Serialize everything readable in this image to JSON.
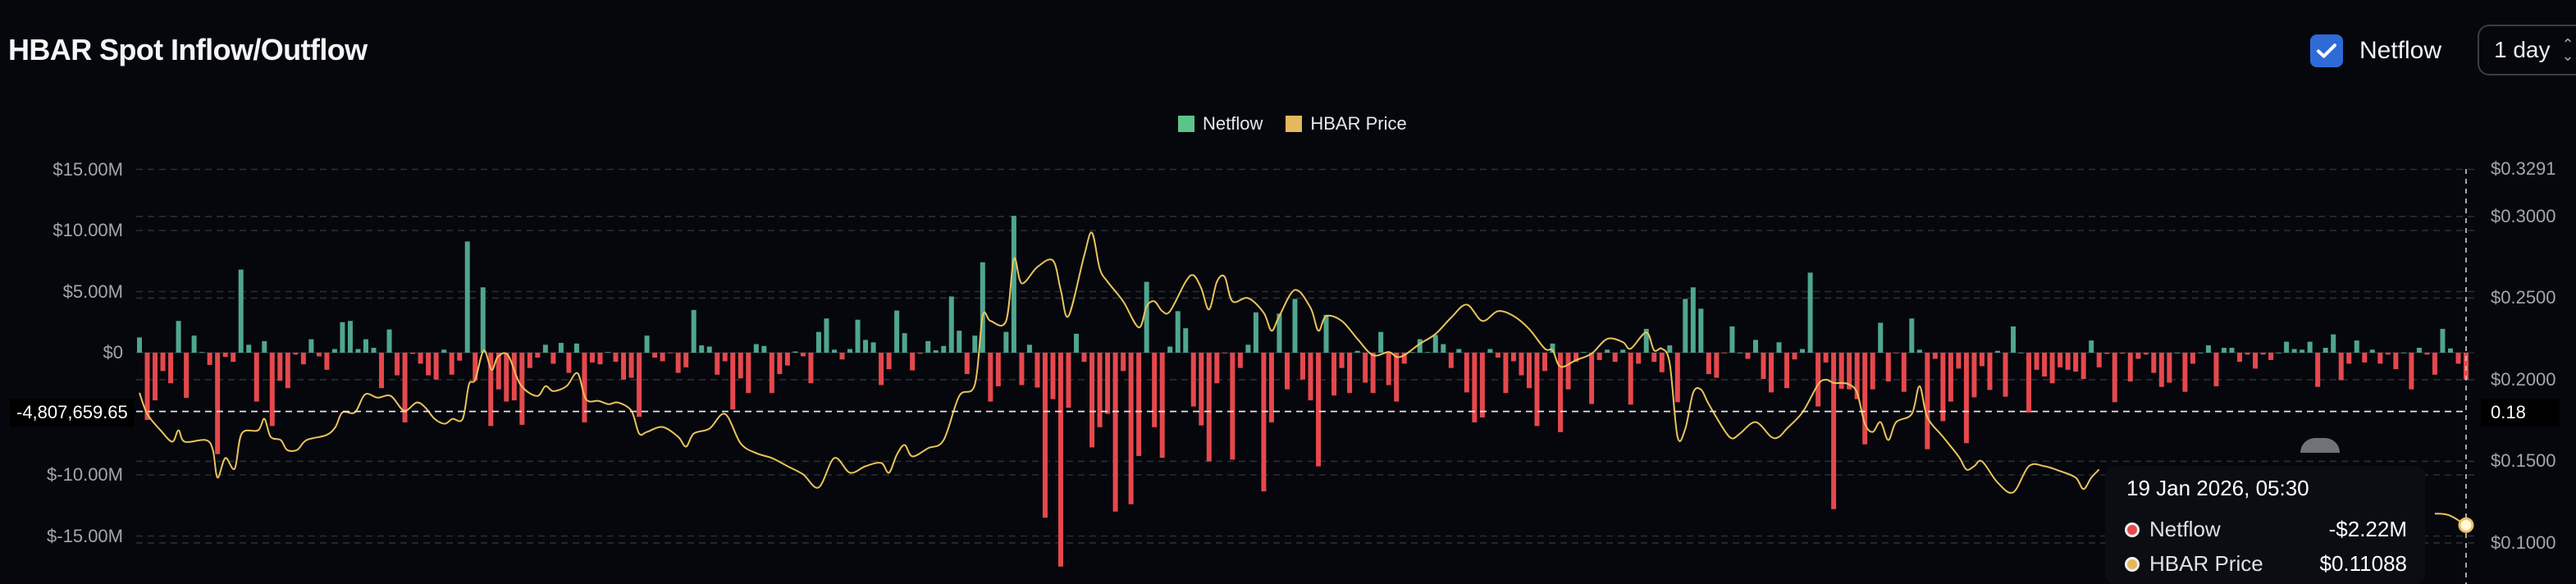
{
  "header": {
    "title": "HBAR Spot Inflow/Outflow",
    "netflow_toggle": {
      "label": "Netflow",
      "checked": true
    },
    "interval": {
      "value": "1 day"
    }
  },
  "legend": [
    {
      "name": "Netflow",
      "color": "#5cc48a"
    },
    {
      "name": "HBAR Price",
      "color": "#e3b95c"
    }
  ],
  "crosshair": {
    "netflow_label": "-4,807,659.65",
    "price_label": "0.18"
  },
  "tooltip": {
    "date": "19 Jan 2026, 05:30",
    "rows": [
      {
        "label": "Netflow",
        "value": "-$2.22M",
        "color": "#e5484d"
      },
      {
        "label": "HBAR Price",
        "value": "$0.11088",
        "color": "#e3b95c"
      }
    ]
  },
  "colors": {
    "inflow": "#4fa68e",
    "outflow": "#e5484d",
    "price_line": "#e9c35c",
    "background": "#05070c"
  },
  "chart_data": {
    "type": "bar+line",
    "title": "HBAR Spot Inflow/Outflow",
    "grid": true,
    "legend_position": "top-center",
    "left_axis": {
      "unit": "USD millions",
      "range": [
        -17.6,
        15
      ],
      "ticks": [
        {
          "value": 15,
          "label": "$15.00M"
        },
        {
          "value": 10,
          "label": "$10.00M"
        },
        {
          "value": 5,
          "label": "$5.00M"
        },
        {
          "value": 0,
          "label": "$0"
        },
        {
          "value": -10,
          "label": "$-10.00M"
        },
        {
          "value": -15,
          "label": "$-15.00M"
        }
      ]
    },
    "right_axis": {
      "range": [
        0.1,
        0.3291
      ],
      "ticks": [
        {
          "value": 0.3291,
          "label": "$0.3291"
        },
        {
          "value": 0.3,
          "label": "$0.3000"
        },
        {
          "value": 0.25,
          "label": "$0.2500"
        },
        {
          "value": 0.2,
          "label": "$0.2000"
        },
        {
          "value": 0.15,
          "label": "$0.1500"
        },
        {
          "value": 0.1,
          "label": "$0.1000"
        }
      ]
    },
    "crosshair_values": {
      "netflow": -4807659.65,
      "price": 0.18
    },
    "series": [
      {
        "name": "Netflow",
        "type": "bar",
        "axis": "left",
        "values": [
          1.25,
          -5.5,
          -3.9,
          -1.5,
          -2.5,
          2.6,
          -3.7,
          1.4,
          0.05,
          -1.0,
          -8.3,
          -0.35,
          -0.75,
          6.8,
          0.65,
          -4.0,
          0.95,
          -6.0,
          -2.3,
          -2.9,
          -0.15,
          -0.95,
          1.1,
          -0.3,
          -1.4,
          0.3,
          2.5,
          2.6,
          0.3,
          1.1,
          0.4,
          -2.9,
          1.9,
          -1.85,
          -5.7,
          -0.1,
          -0.9,
          -1.85,
          -2.2,
          0.25,
          -1.8,
          -0.65,
          9.1,
          -2.3,
          5.35,
          -6.0,
          -3.0,
          -4.0,
          -3.9,
          -5.9,
          -1.25,
          -0.4,
          0.65,
          -0.9,
          0.8,
          -1.65,
          0.75,
          -5.7,
          -0.8,
          -0.95,
          0.05,
          -0.75,
          -2.2,
          -2.05,
          -5.25,
          1.4,
          -0.4,
          -0.7,
          -0.03,
          -1.65,
          -1.2,
          3.5,
          0.6,
          0.5,
          -1.8,
          -0.7,
          -4.65,
          -2.1,
          -3.3,
          0.7,
          0.55,
          -3.3,
          -1.75,
          -1.05,
          0.1,
          -0.3,
          -2.5,
          1.7,
          2.8,
          0.25,
          -0.55,
          0.3,
          2.7,
          1.05,
          0.85,
          -2.65,
          -1.35,
          3.45,
          1.6,
          -1.45,
          -0.08,
          0.95,
          0.2,
          0.55,
          4.6,
          1.8,
          -1.75,
          1.4,
          7.4,
          -4.0,
          -2.75,
          1.7,
          11.2,
          -2.65,
          0.65,
          -2.85,
          -13.5,
          -3.8,
          -17.5,
          -4.5,
          1.55,
          -0.75,
          -7.75,
          -6.1,
          -5.0,
          -13.0,
          -1.5,
          -12.4,
          -8.45,
          5.8,
          -6.1,
          -8.6,
          0.5,
          3.4,
          2.0,
          -4.4,
          -5.95,
          -8.9,
          -2.5,
          -0.02,
          -8.75,
          -1.25,
          0.65,
          3.3,
          -11.35,
          -5.7,
          3.2,
          -3.0,
          4.4,
          -2.2,
          -3.9,
          -9.3,
          3.1,
          -3.5,
          -1.25,
          -3.3,
          0.15,
          -2.45,
          -3.3,
          1.7,
          -2.65,
          -4.0,
          -0.9,
          0.05,
          1.1,
          0.05,
          1.45,
          0.7,
          -1.25,
          0.3,
          -3.25,
          -5.7,
          -5.3,
          0.3,
          -0.4,
          -3.3,
          -0.7,
          -1.85,
          -2.9,
          -6.0,
          -1.5,
          0.75,
          -6.5,
          -3.0,
          -0.75,
          0.05,
          -4.2,
          -0.6,
          0.25,
          -0.75,
          0.25,
          -4.25,
          -0.9,
          1.95,
          -0.75,
          -1.6,
          0.6,
          -4.05,
          4.4,
          5.35,
          3.6,
          -1.75,
          -2.05,
          -0.05,
          2.15,
          0,
          -0.5,
          1.05,
          -2.15,
          -3.25,
          0.85,
          -2.9,
          -0.55,
          0.3,
          6.55,
          -4.4,
          -0.8,
          -12.8,
          -2.95,
          -3.0,
          -3.8,
          -7.5,
          -3.0,
          2.45,
          -2.35,
          -0.05,
          -3.2,
          2.8,
          0.25,
          -7.9,
          -0.5,
          -5.6,
          -4.0,
          -1.3,
          -7.4,
          -3.65,
          -1.1,
          -3.05,
          0.15,
          -3.6,
          2.15,
          0,
          -4.9,
          -1.4,
          -1.95,
          -2.5,
          -1.2,
          -1.4,
          -1.55,
          -2.15,
          1.0,
          -1.2,
          -0.1,
          -4.05,
          -0.08,
          -2.35,
          -0.5,
          -0.15,
          -1.65,
          -2.8,
          -2.45,
          0,
          -3.2,
          -0.9,
          0,
          0.6,
          -2.75,
          0.4,
          0.4,
          -0.75,
          -0.15,
          -1.3,
          -0.15,
          -0.6,
          0,
          0.9,
          0.3,
          0.25,
          0.9,
          -2.8,
          0.4,
          1.5,
          -2.25,
          -0.9,
          1.0,
          -0.8,
          0.25,
          -0.9,
          -0.15,
          -1.35,
          0,
          -3.0,
          0.4,
          -0.15,
          -1.8,
          1.95,
          0.35,
          -0.9,
          -2.22
        ]
      },
      {
        "name": "HBAR Price",
        "type": "line",
        "axis": "right",
        "points": [
          [
            0,
            0.192
          ],
          [
            1,
            0.179
          ],
          [
            2.7,
            0.169
          ],
          [
            4.2,
            0.162
          ],
          [
            5,
            0.169
          ],
          [
            5.8,
            0.162
          ],
          [
            8.5,
            0.163
          ],
          [
            9.4,
            0.157
          ],
          [
            10,
            0.14
          ],
          [
            11,
            0.152
          ],
          [
            12.2,
            0.1455
          ],
          [
            13.1,
            0.167
          ],
          [
            15.2,
            0.169
          ],
          [
            16,
            0.176
          ],
          [
            16.8,
            0.165
          ],
          [
            18.1,
            0.163
          ],
          [
            18.9,
            0.157
          ],
          [
            20.2,
            0.157
          ],
          [
            21.4,
            0.163
          ],
          [
            23.9,
            0.166
          ],
          [
            25.1,
            0.171
          ],
          [
            26,
            0.18
          ],
          [
            27.6,
            0.18
          ],
          [
            28.9,
            0.191
          ],
          [
            30.5,
            0.189
          ],
          [
            32.2,
            0.19
          ],
          [
            33.9,
            0.181
          ],
          [
            35.5,
            0.186
          ],
          [
            36.6,
            0.183
          ],
          [
            37.8,
            0.176
          ],
          [
            39.1,
            0.173
          ],
          [
            40.1,
            0.176
          ],
          [
            41.4,
            0.176
          ],
          [
            42.2,
            0.197
          ],
          [
            43,
            0.2
          ],
          [
            44.1,
            0.218
          ],
          [
            45.1,
            0.206
          ],
          [
            45.9,
            0.214
          ],
          [
            47.2,
            0.215
          ],
          [
            48.8,
            0.197
          ],
          [
            50.9,
            0.19
          ],
          [
            52,
            0.196
          ],
          [
            53,
            0.193
          ],
          [
            54.7,
            0.196
          ],
          [
            56.1,
            0.204
          ],
          [
            57.2,
            0.188
          ],
          [
            58.8,
            0.187
          ],
          [
            60.1,
            0.185
          ],
          [
            61.3,
            0.186
          ],
          [
            63,
            0.181
          ],
          [
            64,
            0.167
          ],
          [
            65,
            0.168
          ],
          [
            67,
            0.171
          ],
          [
            69,
            0.165
          ],
          [
            70,
            0.159
          ],
          [
            71,
            0.167
          ],
          [
            73,
            0.17
          ],
          [
            75,
            0.179
          ],
          [
            77,
            0.161
          ],
          [
            79,
            0.155
          ],
          [
            81,
            0.152
          ],
          [
            83,
            0.147
          ],
          [
            85,
            0.142
          ],
          [
            87,
            0.134
          ],
          [
            89,
            0.152
          ],
          [
            91,
            0.143
          ],
          [
            93,
            0.147
          ],
          [
            95,
            0.149
          ],
          [
            96,
            0.143
          ],
          [
            97,
            0.154
          ],
          [
            98,
            0.16
          ],
          [
            99,
            0.153
          ],
          [
            101,
            0.158
          ],
          [
            103,
            0.163
          ],
          [
            105,
            0.19
          ],
          [
            107,
            0.197
          ],
          [
            108,
            0.239
          ],
          [
            109,
            0.236
          ],
          [
            111,
            0.236
          ],
          [
            112,
            0.274
          ],
          [
            113,
            0.259
          ],
          [
            115,
            0.269
          ],
          [
            117,
            0.273
          ],
          [
            118,
            0.255
          ],
          [
            119,
            0.239
          ],
          [
            121,
            0.276
          ],
          [
            122,
            0.29
          ],
          [
            123,
            0.268
          ],
          [
            124,
            0.26
          ],
          [
            126,
            0.248
          ],
          [
            128,
            0.232
          ],
          [
            129,
            0.245
          ],
          [
            130,
            0.248
          ],
          [
            131,
            0.242
          ],
          [
            132,
            0.242
          ],
          [
            134,
            0.26
          ],
          [
            135,
            0.264
          ],
          [
            136,
            0.256
          ],
          [
            137,
            0.243
          ],
          [
            138,
            0.26
          ],
          [
            139,
            0.263
          ],
          [
            140,
            0.248
          ],
          [
            142,
            0.25
          ],
          [
            144,
            0.241
          ],
          [
            145,
            0.23
          ],
          [
            146,
            0.239
          ],
          [
            148,
            0.255
          ],
          [
            150,
            0.244
          ],
          [
            151,
            0.23
          ],
          [
            152,
            0.239
          ],
          [
            154,
            0.236
          ],
          [
            156,
            0.225
          ],
          [
            158,
            0.215
          ],
          [
            160,
            0.217
          ],
          [
            161,
            0.214
          ],
          [
            162,
            0.215
          ],
          [
            164,
            0.222
          ],
          [
            166,
            0.228
          ],
          [
            168,
            0.238
          ],
          [
            170,
            0.246
          ],
          [
            172,
            0.236
          ],
          [
            174,
            0.242
          ],
          [
            176,
            0.239
          ],
          [
            178,
            0.231
          ],
          [
            180,
            0.219
          ],
          [
            181,
            0.218
          ],
          [
            182,
            0.208
          ],
          [
            184,
            0.212
          ],
          [
            186,
            0.216
          ],
          [
            188,
            0.225
          ],
          [
            190,
            0.223
          ],
          [
            191,
            0.219
          ],
          [
            193,
            0.229
          ],
          [
            194,
            0.218
          ],
          [
            195,
            0.219
          ],
          [
            196,
            0.21
          ],
          [
            197,
            0.165
          ],
          [
            198,
            0.17
          ],
          [
            199,
            0.192
          ],
          [
            200,
            0.194
          ],
          [
            201,
            0.185
          ],
          [
            203,
            0.169
          ],
          [
            204,
            0.164
          ],
          [
            205,
            0.167
          ],
          [
            207,
            0.174
          ],
          [
            209,
            0.165
          ],
          [
            210,
            0.165
          ],
          [
            211,
            0.17
          ],
          [
            213,
            0.18
          ],
          [
            215,
            0.197
          ],
          [
            216,
            0.2
          ],
          [
            217,
            0.198
          ],
          [
            218,
            0.198
          ],
          [
            219,
            0.197
          ],
          [
            220,
            0.192
          ],
          [
            221,
            0.173
          ],
          [
            222,
            0.168
          ],
          [
            223,
            0.174
          ],
          [
            224,
            0.163
          ],
          [
            225,
            0.174
          ],
          [
            227,
            0.179
          ],
          [
            228,
            0.196
          ],
          [
            229,
            0.177
          ],
          [
            231,
            0.165
          ],
          [
            233,
            0.153
          ],
          [
            234,
            0.145
          ],
          [
            235,
            0.147
          ],
          [
            236,
            0.15
          ],
          [
            238,
            0.137
          ],
          [
            240,
            0.131
          ],
          [
            242,
            0.147
          ],
          [
            244,
            0.147
          ],
          [
            246,
            0.144
          ],
          [
            248,
            0.14
          ],
          [
            249,
            0.133
          ],
          [
            250,
            0.14
          ],
          [
            251,
            0.145
          ],
          [
            294,
            0.118
          ],
          [
            295.8,
            0.117
          ],
          [
            298,
            0.11088
          ]
        ]
      }
    ]
  }
}
